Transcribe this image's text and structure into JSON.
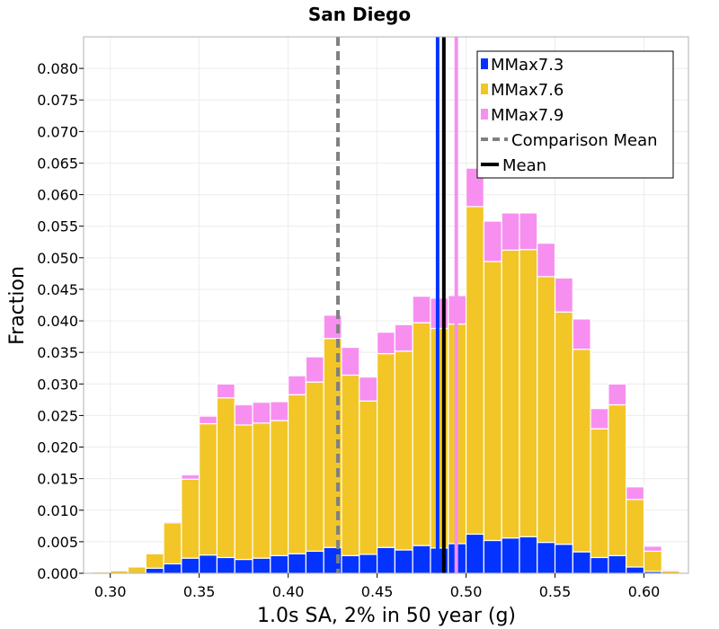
{
  "chart_data": {
    "type": "bar",
    "stacked": true,
    "title": "San Diego",
    "xlabel": "1.0s SA, 2% in 50 year (g)",
    "ylabel": "Fraction",
    "xlim": [
      0.285,
      0.625
    ],
    "ylim": [
      0,
      0.085
    ],
    "xticks": [
      "0.30",
      "0.35",
      "0.40",
      "0.45",
      "0.50",
      "0.55",
      "0.60"
    ],
    "yticks": [
      "0.000",
      "0.005",
      "0.010",
      "0.015",
      "0.020",
      "0.025",
      "0.030",
      "0.035",
      "0.040",
      "0.045",
      "0.050",
      "0.055",
      "0.060",
      "0.065",
      "0.070",
      "0.075",
      "0.080"
    ],
    "grid": true,
    "legend_position": "top-right",
    "bin_width": 0.01,
    "bin_starts": [
      0.29,
      0.3,
      0.31,
      0.32,
      0.33,
      0.34,
      0.35,
      0.36,
      0.37,
      0.38,
      0.39,
      0.4,
      0.41,
      0.42,
      0.43,
      0.44,
      0.45,
      0.46,
      0.47,
      0.48,
      0.49,
      0.5,
      0.51,
      0.52,
      0.53,
      0.54,
      0.55,
      0.56,
      0.57,
      0.58,
      0.59,
      0.6,
      0.61
    ],
    "series": [
      {
        "name": "MMax7.3",
        "color": "#0433ff",
        "values": [
          0,
          0,
          0,
          0.0008,
          0.0015,
          0.0024,
          0.0029,
          0.0025,
          0.0022,
          0.0024,
          0.0028,
          0.0031,
          0.0035,
          0.0041,
          0.0028,
          0.003,
          0.0041,
          0.0037,
          0.0044,
          0.004,
          0.0047,
          0.0062,
          0.0052,
          0.0056,
          0.0058,
          0.0049,
          0.0046,
          0.0034,
          0.0025,
          0.0028,
          0.001,
          0.0003,
          0
        ]
      },
      {
        "name": "MMax7.6",
        "color": "#f2c626",
        "values": [
          0.0002,
          0.0004,
          0.001,
          0.0023,
          0.0065,
          0.0125,
          0.0208,
          0.0253,
          0.0213,
          0.0214,
          0.0214,
          0.0252,
          0.0268,
          0.0331,
          0.0286,
          0.0243,
          0.0307,
          0.0315,
          0.0353,
          0.0348,
          0.0348,
          0.0519,
          0.0442,
          0.0456,
          0.0455,
          0.0421,
          0.0368,
          0.0321,
          0.0204,
          0.0239,
          0.0107,
          0.0032,
          0.0004
        ]
      },
      {
        "name": "MMax7.9",
        "color": "#f78ff0",
        "values": [
          0,
          0,
          0,
          0,
          0.0002,
          0.0007,
          0.0012,
          0.0022,
          0.0032,
          0.0033,
          0.003,
          0.003,
          0.004,
          0.0037,
          0.0044,
          0.0038,
          0.0034,
          0.0042,
          0.0042,
          0.0048,
          0.0045,
          0.0061,
          0.0064,
          0.0059,
          0.0058,
          0.0053,
          0.0054,
          0.0048,
          0.0032,
          0.0033,
          0.002,
          0.0008,
          0.0002
        ]
      }
    ],
    "vlines": [
      {
        "name": "Comparison Mean",
        "x": 0.428,
        "color": "#808080",
        "style": "dashed"
      },
      {
        "name": "Mean",
        "x": 0.4875,
        "color": "#000000",
        "style": "solid"
      },
      {
        "name": "MMax7.3 mean",
        "x": 0.484,
        "color": "#0433ff",
        "style": "solid"
      },
      {
        "name": "MMax7.9 mean",
        "x": 0.4945,
        "color": "#f78ff0",
        "style": "solid"
      }
    ],
    "legend": [
      {
        "label": "MMax7.3",
        "kind": "patch",
        "color": "#0433ff"
      },
      {
        "label": "MMax7.6",
        "kind": "patch",
        "color": "#f2c626"
      },
      {
        "label": "MMax7.9",
        "kind": "patch",
        "color": "#f78ff0"
      },
      {
        "label": "Comparison Mean",
        "kind": "dashed-line",
        "color": "#808080"
      },
      {
        "label": "Mean",
        "kind": "solid-line",
        "color": "#000000"
      }
    ]
  }
}
